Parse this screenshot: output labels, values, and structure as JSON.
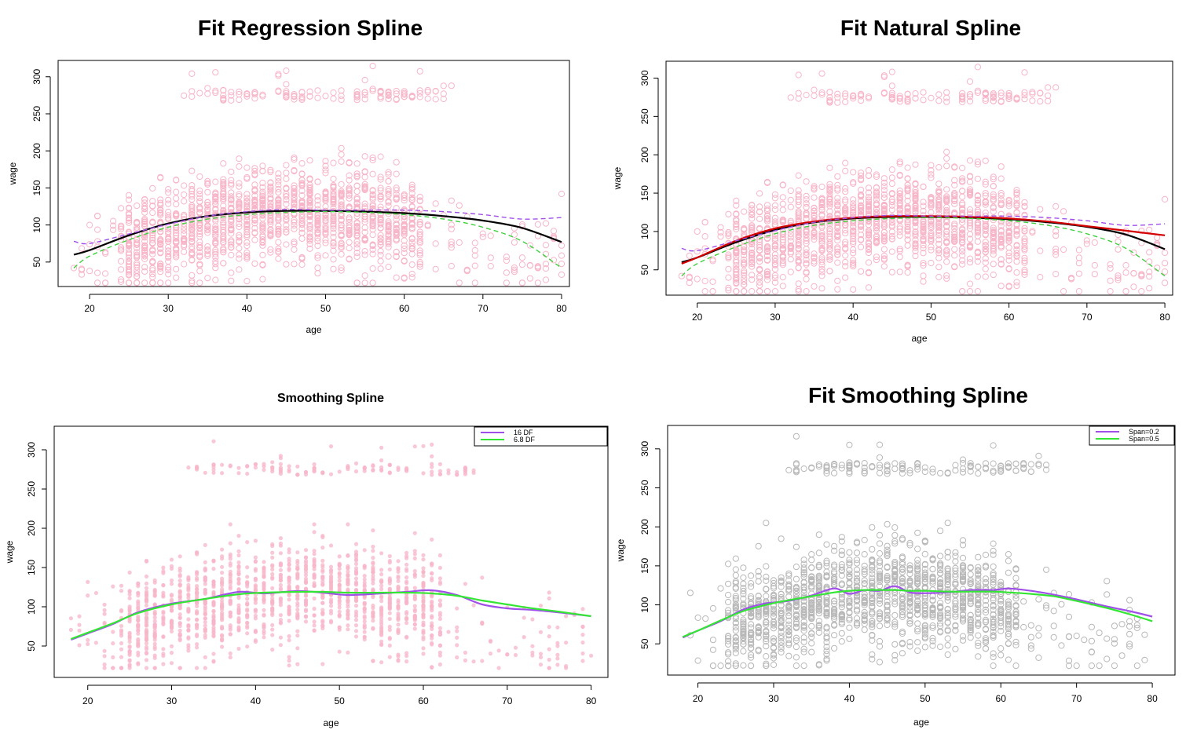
{
  "panels": {
    "p1": {
      "title": "Fit Regression Spline"
    },
    "p2": {
      "title": "Fit Natural Spline"
    },
    "p3": {
      "title": "Smoothing Spline"
    },
    "p4": {
      "title": "Fit Smoothing Spline"
    }
  },
  "colors": {
    "points_pink": "#f7b5c8",
    "points_gray": "#b8b8b8",
    "curve_black": "#000000",
    "curve_red": "#d40000",
    "curve_purple": "#a050e8",
    "curve_green": "#33e633",
    "dash_green": "#40d040"
  },
  "chart_data": [
    {
      "type": "scatter",
      "id": "p1",
      "title": "Fit Regression Spline",
      "xlabel": "age",
      "ylabel": "wage",
      "xlim": [
        16,
        81
      ],
      "ylim": [
        17,
        322
      ],
      "xticks": [
        20,
        30,
        40,
        50,
        60,
        70,
        80
      ],
      "yticks": [
        50,
        100,
        150,
        200,
        250,
        300
      ],
      "point_style": "open-circle",
      "point_color": "#f7b5c8",
      "points_description": "age vs wage scatter: main cloud 50-200 across ages 18-80, high-earner band 250-320 for ages 32-66",
      "series": [
        {
          "style": "solid",
          "color": "#000000",
          "x": [
            18,
            20,
            25,
            30,
            35,
            40,
            45,
            50,
            55,
            60,
            65,
            70,
            75,
            80
          ],
          "values": [
            60,
            66,
            86,
            102,
            112,
            117,
            119,
            119,
            118,
            116,
            112,
            106,
            96,
            77
          ]
        },
        {
          "style": "dashed",
          "color": "#a050e8",
          "x": [
            18,
            20,
            25,
            30,
            35,
            40,
            45,
            50,
            55,
            60,
            65,
            70,
            75,
            80
          ],
          "values": [
            78,
            75,
            88,
            101,
            112,
            118,
            121,
            120,
            120,
            120,
            118,
            114,
            108,
            110
          ]
        },
        {
          "style": "dashed",
          "color": "#40d040",
          "x": [
            18,
            20,
            25,
            30,
            35,
            40,
            45,
            50,
            55,
            60,
            65,
            70,
            75,
            80
          ],
          "values": [
            42,
            58,
            80,
            97,
            108,
            114,
            117,
            118,
            117,
            114,
            108,
            97,
            78,
            42
          ]
        }
      ]
    },
    {
      "type": "scatter",
      "id": "p2",
      "title": "Fit Natural Spline",
      "xlabel": "age",
      "ylabel": "wage",
      "xlim": [
        16,
        81
      ],
      "ylim": [
        17,
        322
      ],
      "xticks": [
        20,
        30,
        40,
        50,
        60,
        70,
        80
      ],
      "yticks": [
        50,
        100,
        150,
        200,
        250,
        300
      ],
      "point_style": "open-circle",
      "point_color": "#f7b5c8",
      "series": [
        {
          "style": "solid",
          "color": "#000000",
          "x": [
            18,
            20,
            25,
            30,
            35,
            40,
            45,
            50,
            55,
            60,
            65,
            70,
            75,
            80
          ],
          "values": [
            60,
            66,
            86,
            102,
            112,
            117,
            119,
            119,
            118,
            116,
            112,
            106,
            96,
            77
          ]
        },
        {
          "style": "solid",
          "color": "#d40000",
          "x": [
            18,
            20,
            25,
            30,
            35,
            40,
            45,
            50,
            55,
            60,
            65,
            70,
            75,
            80
          ],
          "values": [
            58,
            66,
            88,
            104,
            113,
            118,
            120,
            120,
            119,
            117,
            113,
            107,
            101,
            95
          ]
        },
        {
          "style": "dashed",
          "color": "#a050e8",
          "x": [
            18,
            20,
            25,
            30,
            35,
            40,
            45,
            50,
            55,
            60,
            65,
            70,
            75,
            80
          ],
          "values": [
            78,
            75,
            88,
            101,
            112,
            118,
            121,
            120,
            120,
            120,
            118,
            114,
            108,
            110
          ]
        },
        {
          "style": "dashed",
          "color": "#40d040",
          "x": [
            18,
            20,
            25,
            30,
            35,
            40,
            45,
            50,
            55,
            60,
            65,
            70,
            75,
            80
          ],
          "values": [
            42,
            58,
            80,
            97,
            108,
            114,
            117,
            118,
            117,
            114,
            108,
            97,
            78,
            42
          ]
        }
      ]
    },
    {
      "type": "scatter",
      "id": "p3",
      "title": "Smoothing Spline",
      "xlabel": "age",
      "ylabel": "wage",
      "xlim": [
        16,
        82
      ],
      "ylim": [
        10,
        330
      ],
      "xticks": [
        20,
        30,
        40,
        50,
        60,
        70,
        80
      ],
      "yticks": [
        50,
        100,
        150,
        200,
        250,
        300
      ],
      "point_style": "filled-dot",
      "point_color": "#f7b5c8",
      "legend": {
        "position": "top-right",
        "entries": [
          {
            "label": "16 DF",
            "color": "#a050e8"
          },
          {
            "label": "6.8 DF",
            "color": "#33e633"
          }
        ]
      },
      "series": [
        {
          "name": "16 DF",
          "style": "solid",
          "color": "#a050e8",
          "x": [
            18,
            20,
            23,
            26,
            30,
            34,
            38,
            41,
            45,
            48,
            51,
            55,
            58,
            61,
            64,
            67,
            70,
            73,
            76,
            80
          ],
          "values": [
            58,
            66,
            78,
            93,
            104,
            110,
            119,
            117,
            120,
            118,
            115,
            117,
            119,
            121,
            115,
            103,
            98,
            96,
            93,
            88
          ]
        },
        {
          "name": "6.8 DF",
          "style": "solid",
          "color": "#33e633",
          "x": [
            18,
            20,
            23,
            26,
            30,
            34,
            38,
            41,
            45,
            48,
            51,
            55,
            58,
            61,
            64,
            67,
            70,
            73,
            76,
            80
          ],
          "values": [
            59,
            67,
            79,
            92,
            103,
            110,
            116,
            118,
            119,
            119,
            118,
            118,
            118,
            117,
            114,
            108,
            103,
            98,
            94,
            88
          ]
        }
      ]
    },
    {
      "type": "scatter",
      "id": "p4",
      "title": "Fit Smoothing Spline",
      "xlabel": "age",
      "ylabel": "wage",
      "xlim": [
        16,
        83
      ],
      "ylim": [
        10,
        330
      ],
      "xticks": [
        20,
        30,
        40,
        50,
        60,
        70,
        80
      ],
      "yticks": [
        50,
        100,
        150,
        200,
        250,
        300
      ],
      "point_style": "open-circle",
      "point_color": "#b8b8b8",
      "legend": {
        "position": "top-right",
        "entries": [
          {
            "label": "Span=0.2",
            "color": "#a050e8"
          },
          {
            "label": "Span=0.5",
            "color": "#33e633"
          }
        ]
      },
      "series": [
        {
          "name": "Span=0.2",
          "style": "solid",
          "color": "#a050e8",
          "x": [
            18,
            20,
            23,
            26,
            29,
            32,
            35,
            38,
            40,
            42,
            44,
            46,
            48,
            50,
            53,
            56,
            59,
            61,
            64,
            67,
            70,
            74,
            77,
            80
          ],
          "values": [
            58,
            67,
            79,
            94,
            102,
            105,
            112,
            121,
            114,
            119,
            118,
            124,
            116,
            115,
            116,
            119,
            119,
            121,
            118,
            113,
            107,
            98,
            92,
            85
          ]
        },
        {
          "name": "Span=0.5",
          "style": "solid",
          "color": "#33e633",
          "x": [
            18,
            20,
            23,
            26,
            29,
            32,
            35,
            38,
            40,
            42,
            44,
            46,
            48,
            50,
            53,
            56,
            59,
            61,
            64,
            67,
            70,
            74,
            77,
            80
          ],
          "values": [
            59,
            67,
            80,
            92,
            100,
            106,
            111,
            116,
            118,
            119,
            119,
            119,
            118,
            118,
            117,
            117,
            117,
            116,
            114,
            111,
            105,
            96,
            88,
            79
          ]
        }
      ]
    }
  ]
}
